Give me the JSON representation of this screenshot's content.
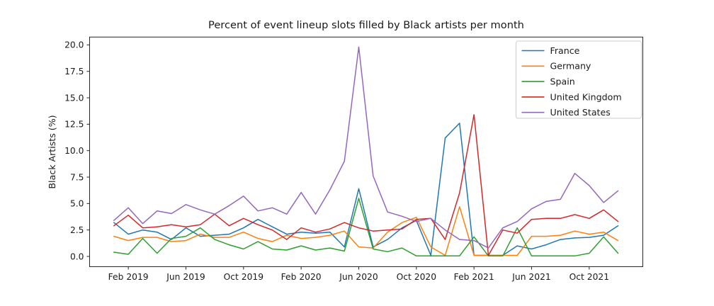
{
  "chart_data": {
    "type": "line",
    "title": "Percent of event lineup slots filled by Black artists per month",
    "ylabel": "Black Artists (%)",
    "xlabel": "",
    "grid": false,
    "legend_position": "upper right",
    "ylim": [
      -1.0,
      20.8
    ],
    "x": [
      "Jan 2019",
      "Feb 2019",
      "Mar 2019",
      "Apr 2019",
      "May 2019",
      "Jun 2019",
      "Jul 2019",
      "Aug 2019",
      "Sep 2019",
      "Oct 2019",
      "Nov 2019",
      "Dec 2019",
      "Jan 2020",
      "Feb 2020",
      "Mar 2020",
      "Apr 2020",
      "May 2020",
      "Jun 2020",
      "Jul 2020",
      "Aug 2020",
      "Sep 2020",
      "Oct 2020",
      "Nov 2020",
      "Dec 2020",
      "Jan 2021",
      "Feb 2021",
      "Mar 2021",
      "Apr 2021",
      "May 2021",
      "Jun 2021",
      "Jul 2021",
      "Aug 2021",
      "Sep 2021",
      "Oct 2021",
      "Nov 2021",
      "Dec 2021"
    ],
    "xticks": [
      {
        "index": 1,
        "label": "Feb 2019"
      },
      {
        "index": 5,
        "label": "Jun 2019"
      },
      {
        "index": 9,
        "label": "Oct 2019"
      },
      {
        "index": 13,
        "label": "Feb 2020"
      },
      {
        "index": 17,
        "label": "Jun 2020"
      },
      {
        "index": 21,
        "label": "Oct 2020"
      },
      {
        "index": 25,
        "label": "Feb 2021"
      },
      {
        "index": 29,
        "label": "Jun 2021"
      },
      {
        "index": 33,
        "label": "Oct 2021"
      }
    ],
    "yticks": [
      {
        "value": 0,
        "label": "0.0"
      },
      {
        "value": 2.5,
        "label": "2.5"
      },
      {
        "value": 5,
        "label": "5.0"
      },
      {
        "value": 7.5,
        "label": "7.5"
      },
      {
        "value": 10,
        "label": "10.0"
      },
      {
        "value": 12.5,
        "label": "12.5"
      },
      {
        "value": 15,
        "label": "15.0"
      },
      {
        "value": 17.5,
        "label": "17.5"
      },
      {
        "value": 20,
        "label": "20.0"
      }
    ],
    "series": [
      {
        "name": "France",
        "color": "#1f77b4",
        "values": [
          3.2,
          2.1,
          2.5,
          2.3,
          1.6,
          2.7,
          1.9,
          2.0,
          2.1,
          2.7,
          3.5,
          2.8,
          2.1,
          2.3,
          2.2,
          2.3,
          0.9,
          6.4,
          0.9,
          1.6,
          2.7,
          3.4,
          0.1,
          11.2,
          12.6,
          0.1,
          0.1,
          0.1,
          1.0,
          0.7,
          1.1,
          1.6,
          1.75,
          1.8,
          2.0,
          2.9
        ]
      },
      {
        "name": "Germany",
        "color": "#ff7f0e",
        "values": [
          1.9,
          1.5,
          1.8,
          1.8,
          1.4,
          1.5,
          2.1,
          1.8,
          1.8,
          2.3,
          1.7,
          1.4,
          2.0,
          1.7,
          1.8,
          2.0,
          2.4,
          0.9,
          0.8,
          2.3,
          3.2,
          3.7,
          0.9,
          0.1,
          4.7,
          0.1,
          0.1,
          0.1,
          0.1,
          1.9,
          1.9,
          2.0,
          2.4,
          2.1,
          2.3,
          1.5
        ]
      },
      {
        "name": "Spain",
        "color": "#2ca02c",
        "values": [
          0.4,
          0.2,
          1.7,
          0.3,
          1.7,
          1.9,
          2.7,
          1.6,
          1.1,
          0.7,
          1.4,
          0.7,
          0.6,
          1.0,
          0.6,
          0.8,
          0.5,
          5.5,
          0.7,
          0.45,
          0.8,
          0.05,
          0.05,
          0.05,
          0.05,
          1.85,
          0.05,
          0.05,
          2.7,
          0.05,
          0.05,
          0.05,
          0.05,
          0.3,
          1.85,
          0.3
        ]
      },
      {
        "name": "United Kingdom",
        "color": "#d62728",
        "values": [
          2.9,
          3.9,
          2.7,
          2.8,
          3.0,
          2.8,
          3.0,
          4.0,
          2.9,
          3.6,
          3.0,
          2.5,
          1.6,
          2.7,
          2.3,
          2.6,
          3.2,
          2.7,
          2.4,
          2.5,
          2.6,
          3.5,
          3.6,
          1.6,
          6.0,
          13.4,
          0.1,
          2.5,
          2.2,
          3.5,
          3.6,
          3.6,
          3.95,
          3.6,
          4.4,
          3.3
        ]
      },
      {
        "name": "United States",
        "color": "#9467bd",
        "values": [
          3.4,
          4.6,
          3.1,
          4.3,
          4.05,
          4.9,
          4.4,
          4.0,
          4.8,
          5.7,
          4.3,
          4.6,
          4.0,
          6.05,
          4.0,
          6.3,
          9.0,
          19.8,
          7.6,
          4.2,
          3.8,
          3.3,
          3.6,
          2.5,
          1.6,
          1.5,
          0.8,
          2.7,
          3.3,
          4.5,
          5.2,
          5.4,
          7.85,
          6.7,
          5.1,
          6.2
        ]
      }
    ]
  }
}
